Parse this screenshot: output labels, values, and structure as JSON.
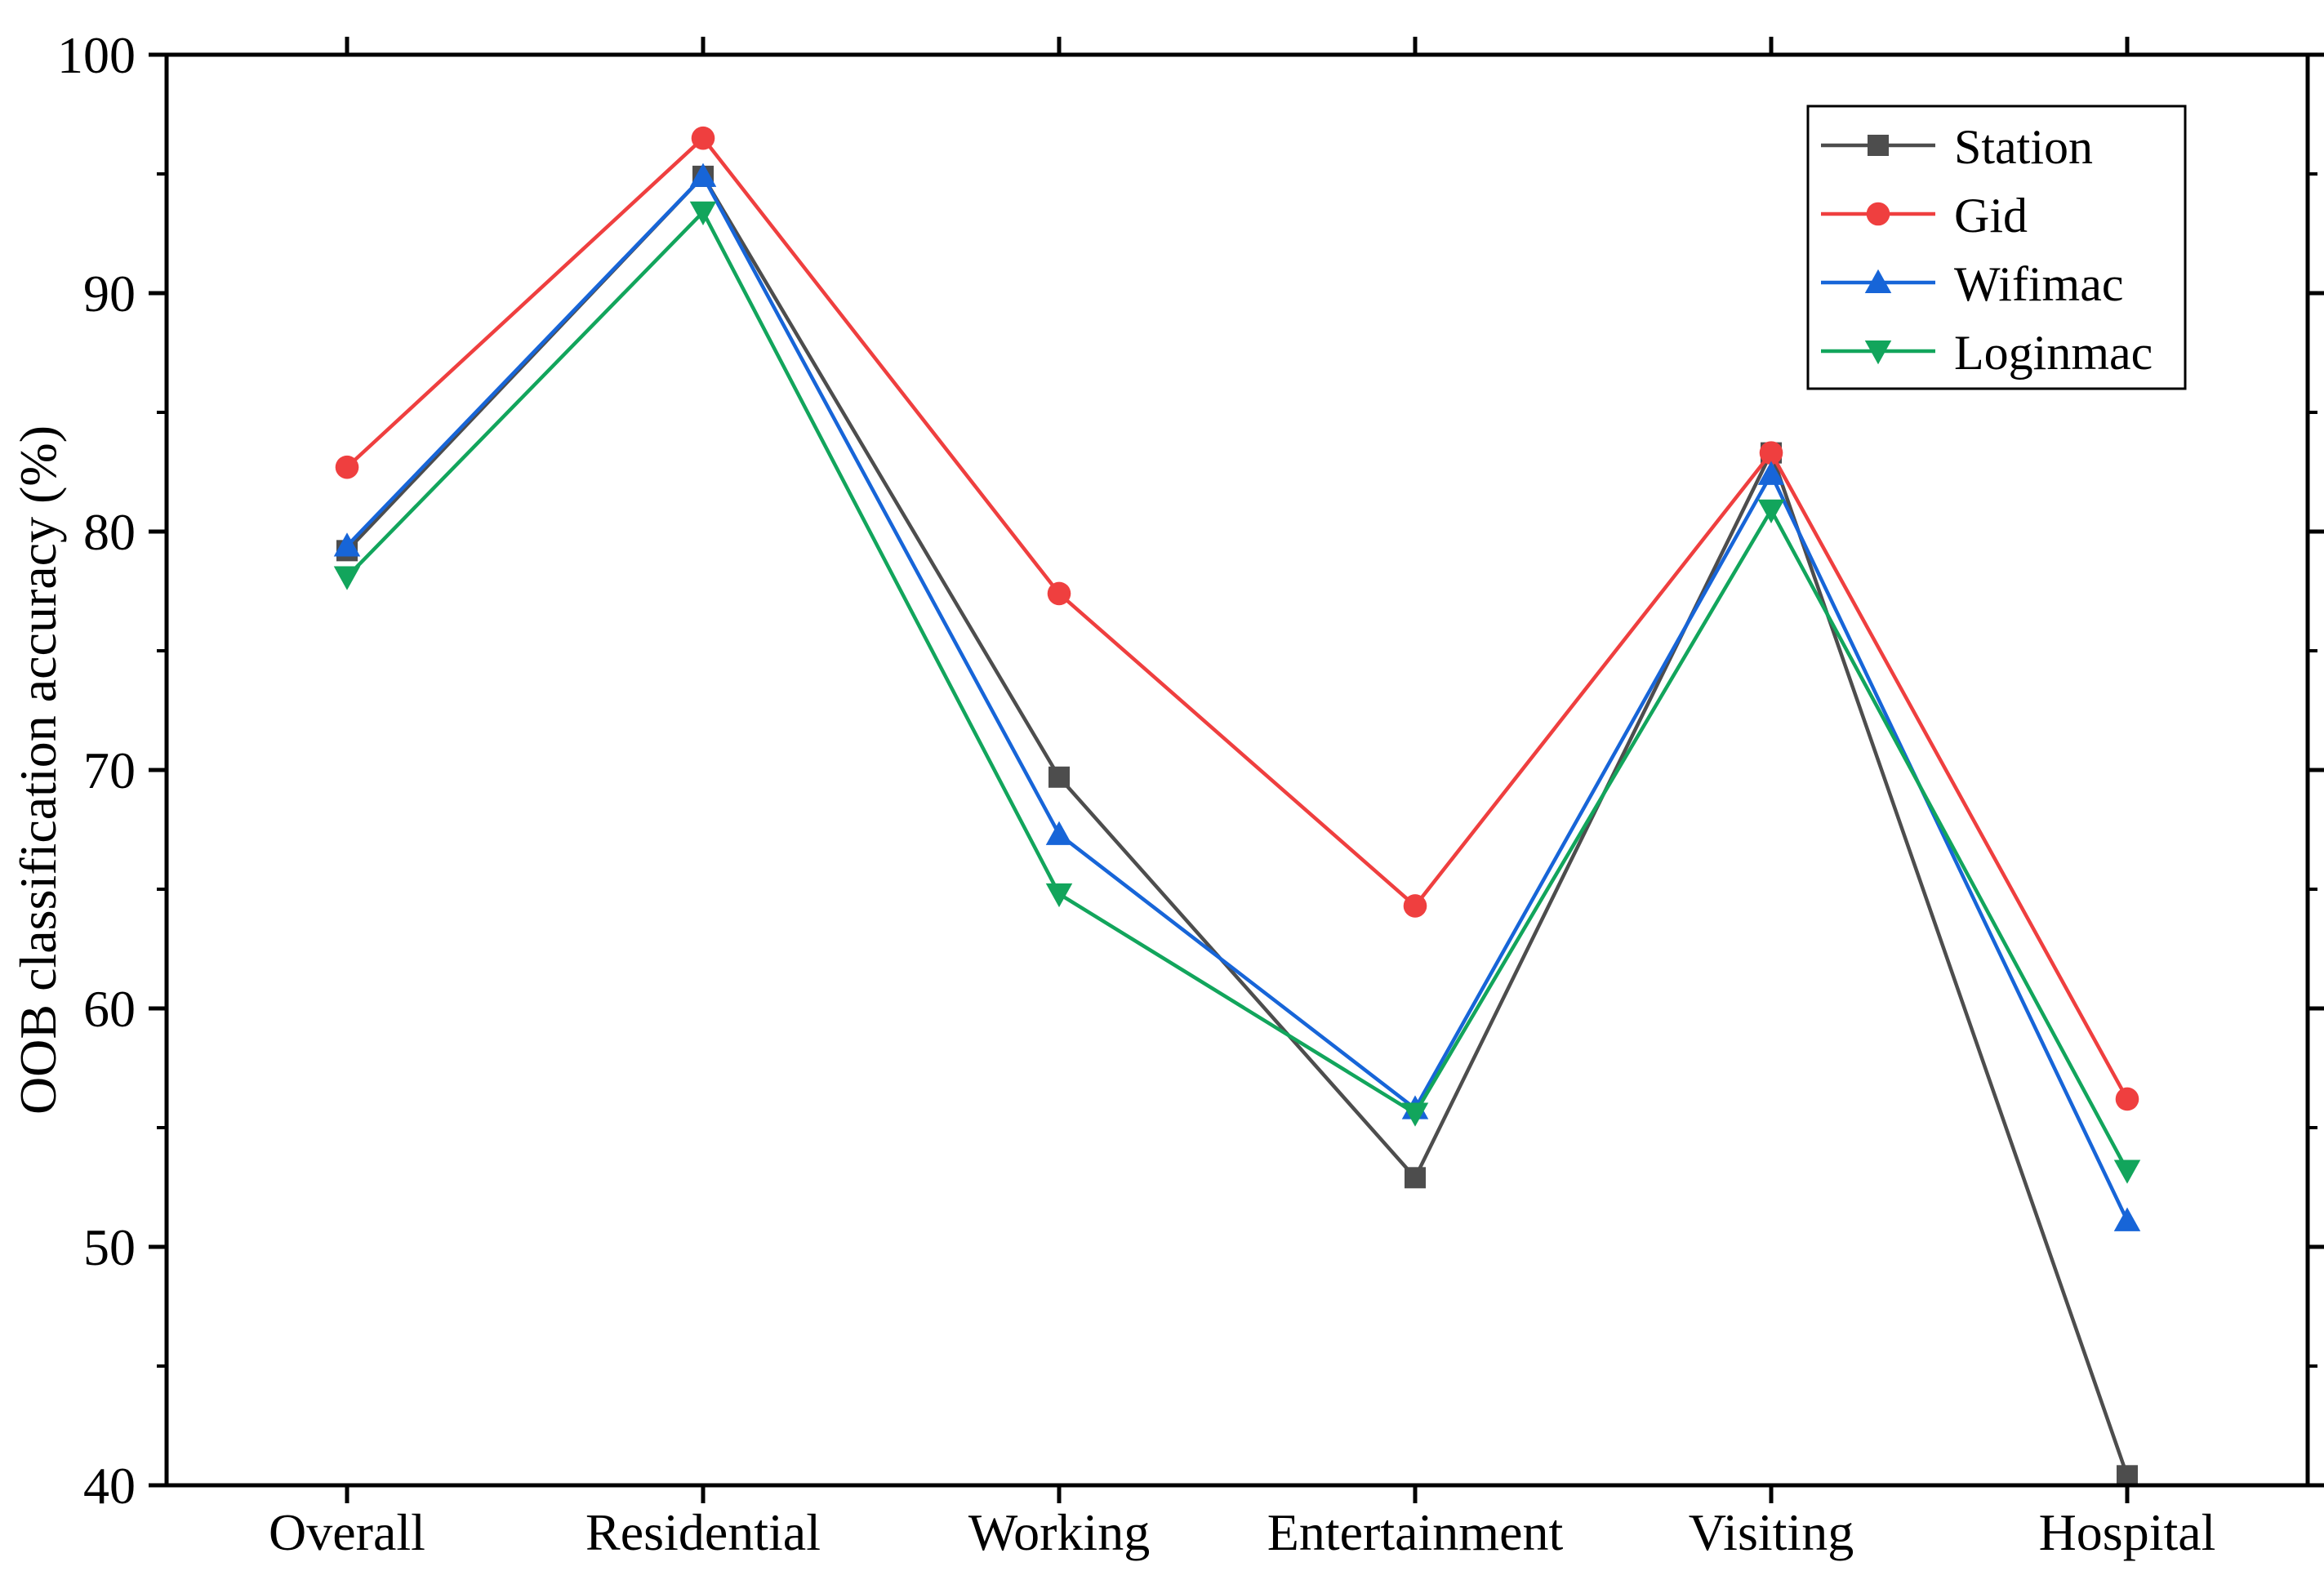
{
  "chart_data": {
    "type": "line",
    "title": "",
    "xlabel": "",
    "ylabel": "OOB classification accuracy (%)",
    "categories": [
      "Overall",
      "Residential",
      "Working",
      "Entertainment",
      "Visiting",
      "Hospital"
    ],
    "ylim": [
      40,
      100
    ],
    "yticks": [
      40,
      50,
      60,
      70,
      80,
      90,
      100
    ],
    "grid": false,
    "legend_position": "top-right",
    "series": [
      {
        "name": "Station",
        "color": "#4d4d4d",
        "marker": "square",
        "values": [
          79.2,
          94.9,
          69.7,
          52.9,
          83.3,
          40.4
        ]
      },
      {
        "name": "Gid",
        "color": "#ef3f3f",
        "marker": "circle",
        "values": [
          82.7,
          96.5,
          77.4,
          64.3,
          83.3,
          56.2
        ]
      },
      {
        "name": "Wifimac",
        "color": "#1765d8",
        "marker": "triangle-up",
        "values": [
          79.4,
          94.9,
          67.3,
          55.8,
          82.4,
          51.1
        ]
      },
      {
        "name": "Loginmac",
        "color": "#12a55c",
        "marker": "triangle-down",
        "values": [
          78.1,
          93.4,
          64.8,
          55.6,
          80.9,
          53.2
        ]
      }
    ]
  }
}
